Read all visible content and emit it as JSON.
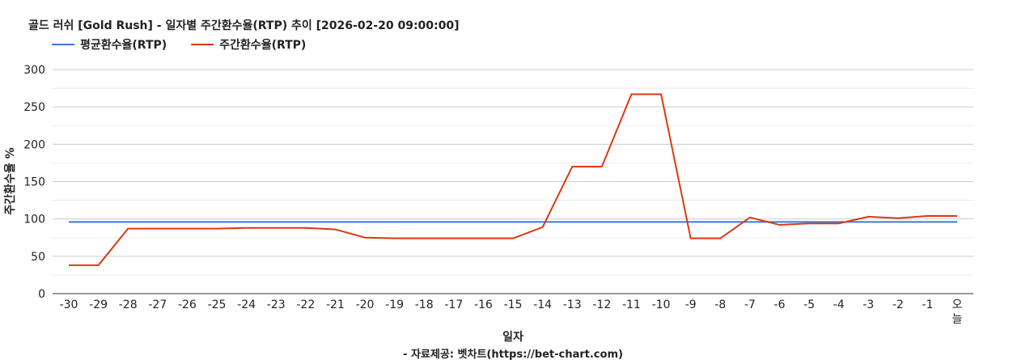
{
  "chart_data": {
    "type": "line",
    "title": "골드 러쉬 [Gold Rush] - 일자별 주간환수율(RTP) 추이 [2026-02-20 09:00:00]",
    "xlabel": "일자",
    "ylabel": "주간환수율 %",
    "footer": "- 자료제공: 벳차트(https://bet-chart.com)",
    "categories": [
      "-30",
      "-29",
      "-28",
      "-27",
      "-26",
      "-25",
      "-24",
      "-23",
      "-22",
      "-21",
      "-20",
      "-19",
      "-18",
      "-17",
      "-16",
      "-15",
      "-14",
      "-13",
      "-12",
      "-11",
      "-10",
      "-9",
      "-8",
      "-7",
      "-6",
      "-5",
      "-4",
      "-3",
      "-2",
      "-1",
      "오늘"
    ],
    "yticks": [
      0,
      50,
      100,
      150,
      200,
      250,
      300
    ],
    "ylim": [
      0,
      300
    ],
    "grid": true,
    "legend_position": "top-left",
    "series": [
      {
        "name": "평균환수율(RTP)",
        "color": "#3c78d8",
        "values": [
          96,
          96,
          96,
          96,
          96,
          96,
          96,
          96,
          96,
          96,
          96,
          96,
          96,
          96,
          96,
          96,
          96,
          96,
          96,
          96,
          96,
          96,
          96,
          96,
          96,
          96,
          96,
          96,
          96,
          96,
          96
        ]
      },
      {
        "name": "주간환수율(RTP)",
        "color": "#dc3912",
        "values": [
          38,
          38,
          87,
          87,
          87,
          87,
          88,
          88,
          88,
          86,
          75,
          74,
          74,
          74,
          74,
          74,
          89,
          170,
          170,
          267,
          267,
          74,
          74,
          102,
          92,
          94,
          94,
          103,
          101,
          104,
          104
        ]
      }
    ]
  }
}
